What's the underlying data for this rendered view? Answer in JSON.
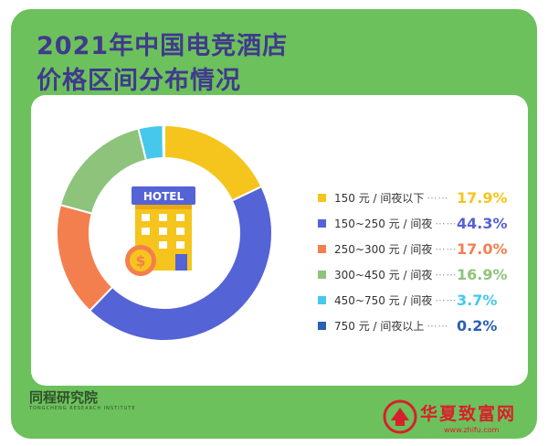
{
  "title_lines": [
    "2021年中国电竞酒店",
    "价格区间分布情况"
  ],
  "chart_data": {
    "type": "pie",
    "donut": true,
    "slices": [
      {
        "label": "150 元 / 间夜以下",
        "value": 17.9,
        "display": "17.9%",
        "color": "#f5c51d"
      },
      {
        "label": "150~250 元 / 间夜",
        "value": 44.3,
        "display": "44.3%",
        "color": "#5463d6"
      },
      {
        "label": "250~300 元 / 间夜",
        "value": 17.0,
        "display": "17.0%",
        "color": "#f47f4e"
      },
      {
        "label": "300~450 元 / 间夜",
        "value": 16.9,
        "display": "16.9%",
        "color": "#8dc37b"
      },
      {
        "label": "450~750 元 / 间夜",
        "value": 3.7,
        "display": "3.7%",
        "color": "#45c8ec"
      },
      {
        "label": "750 元 / 间夜以上",
        "value": 0.2,
        "display": "0.2%",
        "color": "#2a5fb5"
      }
    ],
    "legend_position": "right"
  },
  "hotel_sign": "HOTEL",
  "center_icon": "hotel-building-with-dollar-coin-icon",
  "legend_dots": "⋯⋯",
  "brand": {
    "name": "同程研究院",
    "sub": "TONGCHENG RESEARCH INSTITUTE"
  },
  "watermark": {
    "text": "华夏致富网",
    "url": "www.zhifu.com"
  }
}
